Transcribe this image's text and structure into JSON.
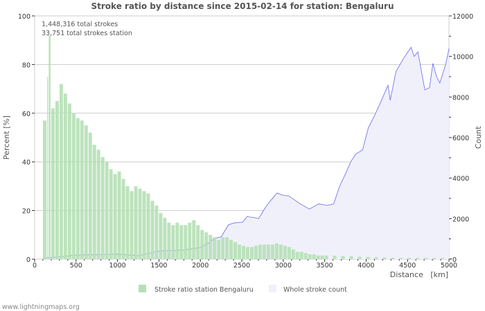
{
  "chart_data": {
    "type": "bar+area",
    "title": "Stroke ratio by distance since 2015-02-14 for station: Bengaluru",
    "annotations": [
      "1,448,316 total strokes",
      "33,751 total strokes station"
    ],
    "xlabel": "Distance   [km]",
    "ylabel_left": "Percent   [%]",
    "ylabel_right": "Count",
    "xlim": [
      0,
      5000
    ],
    "ylim_left": [
      0,
      100
    ],
    "ylim_right": [
      0,
      12000
    ],
    "x_ticks": [
      "0",
      "500",
      "1000",
      "1500",
      "2000",
      "2500",
      "3000",
      "3500",
      "4000",
      "4500",
      "5000"
    ],
    "y_ticks_left": [
      "0",
      "20",
      "40",
      "60",
      "80",
      "100"
    ],
    "y_ticks_right": [
      "0",
      "2000",
      "4000",
      "6000",
      "8000",
      "10000",
      "12000"
    ],
    "grid": true,
    "legend_position": "bottom",
    "series": [
      {
        "name": "Stroke ratio station Bengaluru",
        "kind": "bar",
        "axis": "left",
        "color": "#b5e0b5",
        "x": [
          100,
          150,
          170,
          200,
          250,
          300,
          350,
          400,
          450,
          500,
          550,
          600,
          650,
          700,
          750,
          800,
          850,
          900,
          950,
          1000,
          1050,
          1100,
          1150,
          1200,
          1250,
          1300,
          1350,
          1400,
          1450,
          1500,
          1550,
          1600,
          1650,
          1700,
          1750,
          1800,
          1850,
          1900,
          1950,
          2000,
          2050,
          2100,
          2150,
          2200,
          2250,
          2300,
          2350,
          2400,
          2450,
          2500,
          2550,
          2600,
          2650,
          2700,
          2750,
          2800,
          2850,
          2900,
          2950,
          3000,
          3050,
          3100,
          3150,
          3200,
          3250,
          3300,
          3350,
          3400,
          3450,
          3500,
          3600,
          3700,
          3800,
          3900,
          4000,
          4100,
          4200,
          4300,
          4400,
          4500,
          4600,
          4700,
          4800,
          4900,
          5000
        ],
        "values": [
          57,
          75,
          92,
          62,
          65,
          72,
          68,
          64,
          60,
          58,
          57,
          55,
          52,
          47,
          45,
          42,
          40,
          37,
          35,
          36,
          33,
          30,
          28,
          30,
          29,
          28,
          27,
          24,
          22,
          19,
          17,
          15,
          14,
          15,
          14,
          14,
          15,
          16,
          14,
          12,
          11,
          10,
          9,
          8,
          9,
          9,
          8,
          7,
          6,
          5.5,
          5,
          5,
          5.5,
          6,
          6,
          6,
          6,
          6.5,
          6,
          5.5,
          5,
          4,
          3,
          3,
          2.5,
          2,
          2,
          1.5,
          1.5,
          1.5,
          1.4,
          1.3,
          1.2,
          1,
          0.9,
          0.8,
          0.7,
          0.6,
          0.5,
          0.5,
          0.5,
          0.5,
          0.5,
          0.5,
          0.5
        ]
      },
      {
        "name": "Whole stroke count",
        "kind": "area",
        "axis": "right",
        "color": "#f0f0fb",
        "line_color": "#6666ee",
        "x": [
          100,
          300,
          500,
          800,
          1000,
          1250,
          1500,
          1800,
          2000,
          2100,
          2170,
          2250,
          2340,
          2420,
          2508,
          2564,
          2650,
          2703,
          2787,
          2850,
          2926,
          3000,
          3066,
          3205,
          3316,
          3428,
          3530,
          3609,
          3679,
          3750,
          3818,
          3874,
          3958,
          4027,
          4111,
          4180,
          4264,
          4291,
          4361,
          4458,
          4542,
          4580,
          4625,
          4709,
          4765,
          4806,
          4850,
          4890,
          4960,
          5000
        ],
        "values": [
          50,
          120,
          200,
          230,
          250,
          170,
          400,
          450,
          580,
          800,
          1020,
          1100,
          1700,
          1800,
          1820,
          2100,
          2050,
          2000,
          2560,
          2900,
          3260,
          3150,
          3120,
          2730,
          2470,
          2730,
          2650,
          2730,
          3580,
          4200,
          4830,
          5170,
          5400,
          6480,
          7160,
          7780,
          8580,
          7840,
          9260,
          9940,
          10450,
          10000,
          10220,
          8350,
          8460,
          9660,
          9000,
          8690,
          9600,
          10390
        ]
      }
    ]
  },
  "footer": "www.lightningmaps.org"
}
